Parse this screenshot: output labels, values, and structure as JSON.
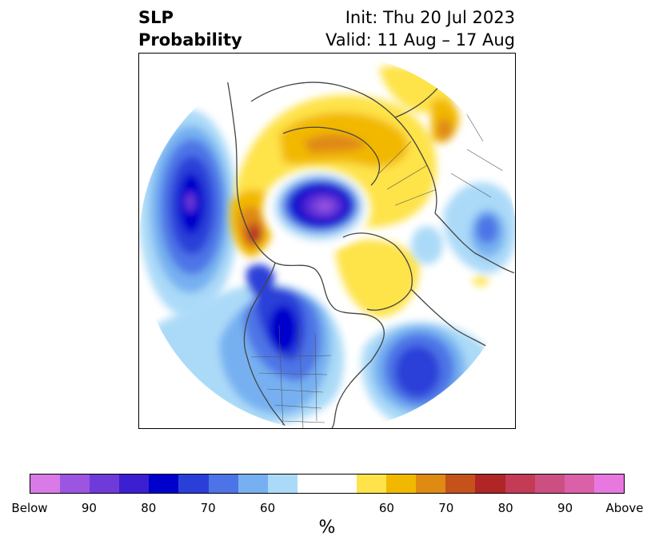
{
  "title": {
    "left_line1": "SLP",
    "left_line2": "Probability",
    "right_line1": "Init: Thu 20 Jul 2023",
    "right_line2": "Valid: 11 Aug – 17 Aug"
  },
  "colorbar": {
    "unit": "%",
    "ticks": [
      "Below",
      "90",
      "80",
      "70",
      "60",
      "60",
      "70",
      "80",
      "90",
      "Above"
    ],
    "below_colors": [
      "#d97ae6",
      "#9c55e0",
      "#6e3ad9",
      "#3c1fd1",
      "#0000cc",
      "#2a3fd8",
      "#4d74e6",
      "#76b0f0",
      "#abdaf8"
    ],
    "neutral_color": "#ffffff",
    "above_colors": [
      "#fee34a",
      "#f2b800",
      "#df8a12",
      "#c4521a",
      "#b02525",
      "#c33b55",
      "#cc4f82",
      "#dc60a8",
      "#e878e0"
    ]
  },
  "map": {
    "projection": "north-polar-stereographic",
    "icons": [
      "coastline-icon",
      "border-icon"
    ]
  }
}
